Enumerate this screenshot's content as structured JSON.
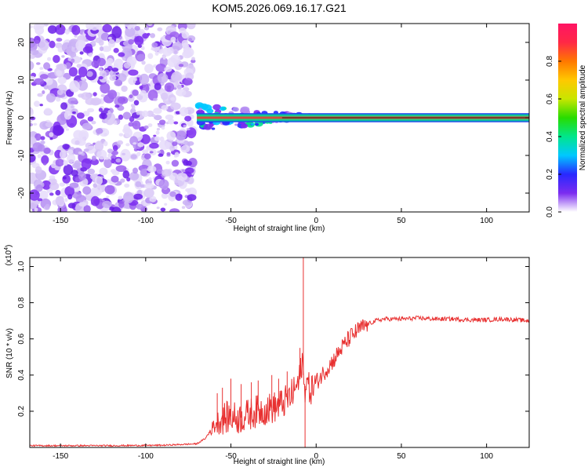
{
  "title": "KOM5.2026.069.16.17.G21",
  "chart_data": [
    {
      "type": "heatmap",
      "title": "KOM5.2026.069.16.17.G21",
      "xlabel": "Height of straight line (km)",
      "ylabel": "Frequency (Hz)",
      "xlim": [
        -168,
        125
      ],
      "ylim": [
        -25,
        25
      ],
      "xticks": [
        -150,
        -100,
        -50,
        0,
        50,
        100
      ],
      "xtick_labels": [
        "-150",
        "-100",
        "-50",
        "0",
        "50",
        "100"
      ],
      "yticks": [
        -20,
        -10,
        0,
        10,
        20
      ],
      "ytick_labels": [
        "-20",
        "-10",
        "0",
        "10",
        "20"
      ],
      "noise_region_x": [
        -168,
        -70
      ],
      "signal_band": {
        "x_start": -70,
        "x_end": 125,
        "freq_center": 0,
        "freq_halfwidth": 1.2
      },
      "colorbar": {
        "label": "Normalized spectral amplitude",
        "range": [
          0,
          1
        ],
        "ticks": [
          0,
          0.2,
          0.4,
          0.6,
          0.8
        ],
        "tick_labels": [
          "0.0",
          "0.2",
          "0.4",
          "0.6",
          "0.8"
        ],
        "stops": [
          "#ffffff",
          "#7b2cf0",
          "#2828ff",
          "#00c8ff",
          "#00e68c",
          "#28dc00",
          "#c8e600",
          "#ffc800",
          "#ff7800",
          "#ff2846",
          "#ff1464"
        ]
      }
    },
    {
      "type": "line",
      "xlabel": "Height of straight line (km)",
      "ylabel": "SNR (10 * v/v)",
      "y_multiplier": "(x10",
      "y_multiplier_exp": "4",
      "y_multiplier_close": ")",
      "xlim": [
        -168,
        125
      ],
      "ylim": [
        0,
        1.05
      ],
      "xticks": [
        -150,
        -100,
        -50,
        0,
        50,
        100
      ],
      "xtick_labels": [
        "-150",
        "-100",
        "-50",
        "0",
        "50",
        "100"
      ],
      "yticks": [
        0.2,
        0.4,
        0.6,
        0.8,
        1.0
      ],
      "ytick_labels": [
        "0.2",
        "0.4",
        "0.6",
        "0.8",
        "1.0"
      ],
      "series": [
        {
          "name": "SNR",
          "color": "#e83030",
          "x": [
            -168,
            -150,
            -120,
            -90,
            -70,
            -65,
            -60,
            -55,
            -50,
            -45,
            -40,
            -35,
            -30,
            -25,
            -20,
            -15,
            -10,
            -8,
            -7,
            -6,
            -4,
            -2,
            0,
            5,
            10,
            15,
            20,
            25,
            30,
            35,
            40,
            50,
            60,
            70,
            80,
            90,
            100,
            110,
            125
          ],
          "y": [
            0.01,
            0.01,
            0.01,
            0.012,
            0.02,
            0.05,
            0.12,
            0.16,
            0.17,
            0.16,
            0.18,
            0.2,
            0.21,
            0.22,
            0.24,
            0.28,
            0.36,
            0.5,
            0.3,
            0.38,
            0.32,
            0.33,
            0.36,
            0.42,
            0.48,
            0.55,
            0.61,
            0.65,
            0.68,
            0.7,
            0.71,
            0.71,
            0.715,
            0.71,
            0.71,
            0.705,
            0.705,
            0.71,
            0.7
          ],
          "spikes": [
            {
              "x": -7.5,
              "y": 1.05
            },
            {
              "x": -9.5,
              "y": 0.55
            },
            {
              "x": -17,
              "y": 0.42
            },
            {
              "x": -22,
              "y": 0.38
            },
            {
              "x": -26,
              "y": 0.4
            },
            {
              "x": -34,
              "y": 0.37
            },
            {
              "x": -38,
              "y": 0.36
            },
            {
              "x": -44,
              "y": 0.35
            },
            {
              "x": -50,
              "y": 0.38
            },
            {
              "x": -55,
              "y": 0.33
            },
            {
              "x": -58,
              "y": 0.3
            },
            {
              "x": -6.5,
              "y": 0.0
            }
          ]
        }
      ]
    }
  ]
}
